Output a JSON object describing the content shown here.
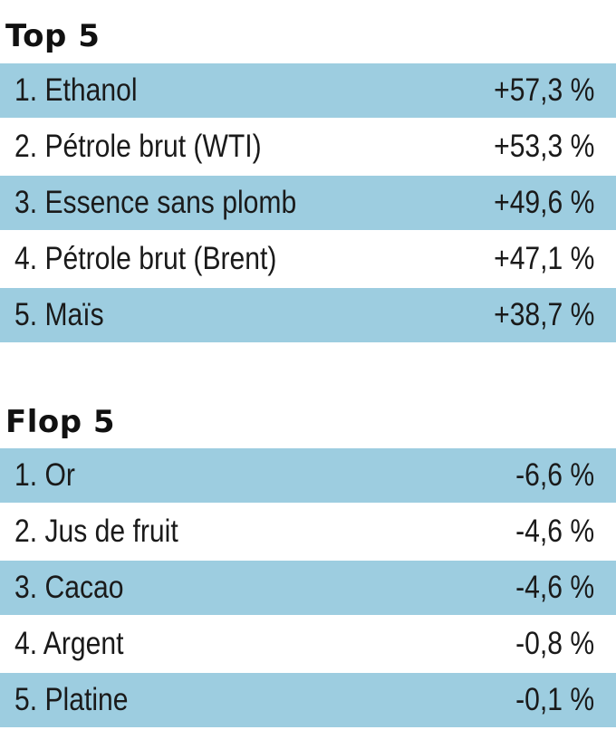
{
  "chart_data": [
    {
      "type": "table",
      "title": "Top 5",
      "columns": [
        "",
        ""
      ],
      "rows": [
        {
          "label": "1. Ethanol",
          "value": "+57,3 %"
        },
        {
          "label": "2. Pétrole brut (WTI)",
          "value": "+53,3 %"
        },
        {
          "label": "3. Essence sans plomb",
          "value": "+49,6 %"
        },
        {
          "label": "4. Pétrole brut (Brent)",
          "value": "+47,1 %"
        },
        {
          "label": "5. Maïs",
          "value": "+38,7 %"
        }
      ],
      "values": [
        57.3,
        53.3,
        49.6,
        47.1,
        38.7
      ]
    },
    {
      "type": "table",
      "title": "Flop 5",
      "columns": [
        "",
        ""
      ],
      "rows": [
        {
          "label": "1. Or",
          "value": "-6,6 %"
        },
        {
          "label": "2. Jus de fruit",
          "value": "-4,6 %"
        },
        {
          "label": "3. Cacao",
          "value": "-4,6 %"
        },
        {
          "label": "4. Argent",
          "value": "-0,8 %"
        },
        {
          "label": "5. Platine",
          "value": "-0,1 %"
        }
      ],
      "values": [
        -6.6,
        -4.6,
        -4.6,
        -0.8,
        -0.1
      ]
    }
  ],
  "colors": {
    "row_shade": "#9dcde0",
    "row_plain": "#ffffff",
    "text": "#1a1a1a"
  }
}
